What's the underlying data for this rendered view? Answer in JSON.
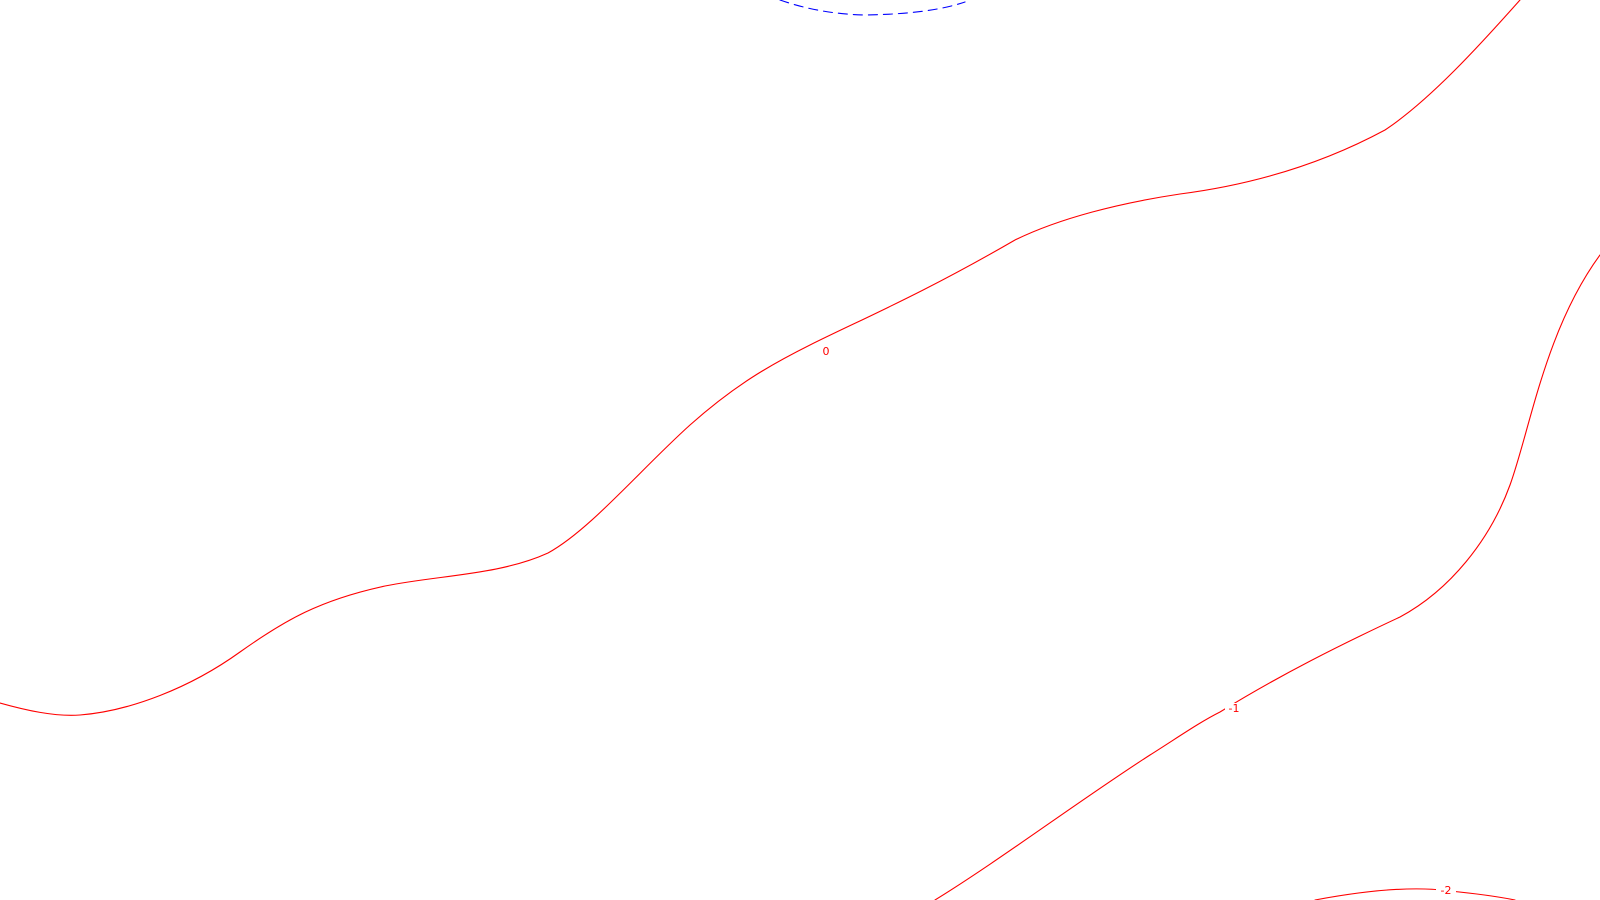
{
  "map": {
    "contours": [
      {
        "id": "contour-0",
        "level_label": "0",
        "color": "#ff0000",
        "style": "solid"
      },
      {
        "id": "contour-minus-1",
        "level_label": "-1",
        "color": "#ff0000",
        "style": "solid"
      },
      {
        "id": "contour-minus-2",
        "level_label": "-2",
        "color": "#ff0000",
        "style": "solid"
      },
      {
        "id": "contour-positive-top",
        "level_label": "",
        "color": "#0000ff",
        "style": "dashed"
      }
    ]
  }
}
